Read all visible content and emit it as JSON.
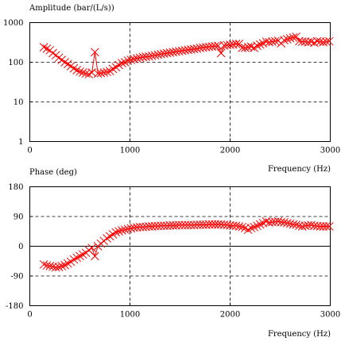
{
  "chart_data": [
    {
      "type": "scatter",
      "ylabel": "Amplitude (bar/(L/s))",
      "xlabel": "Frequency (Hz)",
      "xlim": [
        0,
        3000
      ],
      "ylim": [
        1,
        1000
      ],
      "yscale": "log",
      "x_ticks": [
        0,
        1000,
        2000,
        3000
      ],
      "y_ticks": [
        1,
        10,
        100,
        1000
      ],
      "x_tick_labels": [
        "0",
        "1000",
        "2000",
        "3000"
      ],
      "y_tick_labels": [
        "1",
        "10",
        "100",
        "1000"
      ],
      "grid": "dashed at x=1000, x=2000, y=10, y=100",
      "marker": "x",
      "color": "#ff0000",
      "x": [
        140,
        170,
        200,
        230,
        260,
        290,
        320,
        350,
        380,
        410,
        440,
        470,
        500,
        530,
        560,
        590,
        620,
        650,
        680,
        710,
        740,
        770,
        800,
        830,
        860,
        890,
        920,
        950,
        980,
        1010,
        1040,
        1070,
        1100,
        1130,
        1160,
        1190,
        1220,
        1250,
        1280,
        1310,
        1340,
        1370,
        1400,
        1430,
        1460,
        1490,
        1520,
        1550,
        1580,
        1610,
        1640,
        1670,
        1700,
        1730,
        1760,
        1790,
        1820,
        1850,
        1880,
        1910,
        1940,
        1970,
        2000,
        2030,
        2060,
        2090,
        2120,
        2150,
        2180,
        2210,
        2240,
        2270,
        2300,
        2330,
        2360,
        2390,
        2420,
        2450,
        2480,
        2510,
        2540,
        2570,
        2600,
        2630,
        2660,
        2690,
        2720,
        2750,
        2780,
        2810,
        2840,
        2870,
        2900,
        2930,
        2960,
        2990
      ],
      "y": [
        240,
        220,
        200,
        170,
        150,
        130,
        115,
        100,
        90,
        80,
        70,
        63,
        58,
        55,
        52,
        50,
        55,
        180,
        52,
        53,
        55,
        57,
        60,
        68,
        75,
        85,
        95,
        100,
        110,
        115,
        120,
        125,
        130,
        135,
        138,
        140,
        145,
        150,
        155,
        160,
        165,
        170,
        175,
        180,
        185,
        190,
        195,
        200,
        205,
        210,
        215,
        220,
        230,
        235,
        240,
        245,
        250,
        255,
        260,
        170,
        265,
        270,
        275,
        280,
        290,
        290,
        230,
        230,
        240,
        250,
        230,
        260,
        280,
        300,
        330,
        320,
        330,
        340,
        350,
        300,
        360,
        380,
        400,
        420,
        440,
        340,
        330,
        330,
        320,
        330,
        310,
        340,
        330,
        320,
        330,
        340
      ]
    },
    {
      "type": "scatter",
      "ylabel": "Phase (deg)",
      "xlabel": "Frequency (Hz)",
      "xlim": [
        0,
        3000
      ],
      "ylim": [
        -180,
        180
      ],
      "x_ticks": [
        0,
        1000,
        2000,
        3000
      ],
      "y_ticks": [
        -180,
        -90,
        0,
        90,
        180
      ],
      "x_tick_labels": [
        "0",
        "1000",
        "2000",
        "3000"
      ],
      "y_tick_labels": [
        "-180",
        "-90",
        "0",
        "90",
        "180"
      ],
      "grid": "dashed at x=1000, x=2000, y=-90, y=90; solid at y=0",
      "marker": "x",
      "color": "#ff0000",
      "x": [
        140,
        170,
        200,
        230,
        260,
        290,
        320,
        350,
        380,
        410,
        440,
        470,
        500,
        530,
        560,
        590,
        620,
        650,
        680,
        710,
        740,
        770,
        800,
        830,
        860,
        890,
        920,
        950,
        980,
        1010,
        1040,
        1070,
        1100,
        1130,
        1160,
        1190,
        1220,
        1250,
        1280,
        1310,
        1340,
        1370,
        1400,
        1430,
        1460,
        1490,
        1520,
        1550,
        1580,
        1610,
        1640,
        1670,
        1700,
        1730,
        1760,
        1790,
        1820,
        1850,
        1880,
        1910,
        1940,
        1970,
        2000,
        2030,
        2060,
        2090,
        2120,
        2150,
        2180,
        2210,
        2240,
        2270,
        2300,
        2330,
        2360,
        2390,
        2420,
        2450,
        2480,
        2510,
        2540,
        2570,
        2600,
        2630,
        2660,
        2690,
        2720,
        2750,
        2780,
        2810,
        2840,
        2870,
        2900,
        2930,
        2960,
        2990
      ],
      "y": [
        -55,
        -58,
        -60,
        -62,
        -64,
        -63,
        -60,
        -57,
        -52,
        -47,
        -40,
        -35,
        -30,
        -25,
        -20,
        -12,
        -5,
        -30,
        0,
        8,
        16,
        24,
        30,
        36,
        42,
        45,
        48,
        50,
        52,
        54,
        56,
        57,
        58,
        58,
        59,
        60,
        60,
        61,
        61,
        62,
        62,
        62,
        63,
        63,
        63,
        64,
        64,
        64,
        64,
        64,
        64,
        65,
        65,
        65,
        65,
        66,
        66,
        66,
        66,
        66,
        65,
        64,
        63,
        62,
        62,
        60,
        58,
        55,
        50,
        55,
        58,
        62,
        66,
        70,
        75,
        72,
        73,
        74,
        75,
        73,
        72,
        70,
        68,
        66,
        65,
        62,
        60,
        62,
        63,
        64,
        62,
        61,
        60,
        60,
        60,
        60
      ]
    }
  ]
}
